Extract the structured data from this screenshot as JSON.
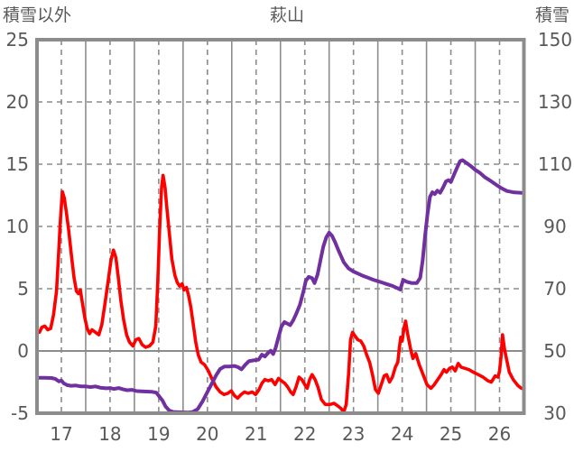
{
  "chart": {
    "title": "萩山",
    "left_axis_title": "積雪以外",
    "right_axis_title": "積雪"
  },
  "chart_data": {
    "type": "line",
    "title": "萩山",
    "x_axis": {
      "labels": [
        "17",
        "18",
        "19",
        "20",
        "21",
        "22",
        "23",
        "24",
        "25",
        "26"
      ],
      "min": 17,
      "max": 27,
      "note": "x in day-of-month units; each labeled day cell spans one unit; solid gridlines at day boundaries, dashed gridlines at day centers"
    },
    "left_axis": {
      "label": "積雪以外",
      "min": -5,
      "max": 25,
      "ticks": [
        25,
        20,
        15,
        10,
        5,
        0,
        -5
      ],
      "zero_line": 0,
      "dashed_gridlines": [
        20,
        15,
        10,
        5
      ]
    },
    "right_axis": {
      "label": "積雪",
      "min": 30,
      "max": 150,
      "ticks": [
        150,
        130,
        110,
        90,
        70,
        50,
        30
      ]
    },
    "colors": {
      "series_non_snow": "#ff0000",
      "series_snow": "#7030a0",
      "grid": "#8c8c8c",
      "text": "#595959"
    },
    "legend": "none",
    "series": [
      {
        "name": "積雪以外",
        "axis": "left",
        "color": "#ff0000",
        "points": [
          [
            17.0,
            1.6
          ],
          [
            17.05,
            1.5
          ],
          [
            17.1,
            1.9
          ],
          [
            17.16,
            2.0
          ],
          [
            17.22,
            1.7
          ],
          [
            17.28,
            1.8
          ],
          [
            17.34,
            2.9
          ],
          [
            17.4,
            4.8
          ],
          [
            17.44,
            7.5
          ],
          [
            17.48,
            10.5
          ],
          [
            17.52,
            12.8
          ],
          [
            17.56,
            12.3
          ],
          [
            17.6,
            11.2
          ],
          [
            17.65,
            9.7
          ],
          [
            17.7,
            7.9
          ],
          [
            17.76,
            5.9
          ],
          [
            17.81,
            4.8
          ],
          [
            17.85,
            4.6
          ],
          [
            17.89,
            4.9
          ],
          [
            17.93,
            3.9
          ],
          [
            17.98,
            2.7
          ],
          [
            18.03,
            1.8
          ],
          [
            18.08,
            1.4
          ],
          [
            18.13,
            1.7
          ],
          [
            18.2,
            1.5
          ],
          [
            18.27,
            1.3
          ],
          [
            18.33,
            2.1
          ],
          [
            18.4,
            3.9
          ],
          [
            18.46,
            5.6
          ],
          [
            18.52,
            7.3
          ],
          [
            18.57,
            8.1
          ],
          [
            18.62,
            7.5
          ],
          [
            18.67,
            5.9
          ],
          [
            18.72,
            4.1
          ],
          [
            18.78,
            2.5
          ],
          [
            18.84,
            1.3
          ],
          [
            18.9,
            0.7
          ],
          [
            18.97,
            0.4
          ],
          [
            19.03,
            0.9
          ],
          [
            19.09,
            1.0
          ],
          [
            19.16,
            0.5
          ],
          [
            19.23,
            0.3
          ],
          [
            19.31,
            0.4
          ],
          [
            19.38,
            0.7
          ],
          [
            19.44,
            2.0
          ],
          [
            19.48,
            5.5
          ],
          [
            19.52,
            10.0
          ],
          [
            19.56,
            13.2
          ],
          [
            19.59,
            14.1
          ],
          [
            19.63,
            13.1
          ],
          [
            19.67,
            11.4
          ],
          [
            19.72,
            9.4
          ],
          [
            19.77,
            7.4
          ],
          [
            19.83,
            6.1
          ],
          [
            19.88,
            5.5
          ],
          [
            19.93,
            5.2
          ],
          [
            19.98,
            5.4
          ],
          [
            20.02,
            4.9
          ],
          [
            20.07,
            5.1
          ],
          [
            20.11,
            4.5
          ],
          [
            20.16,
            3.5
          ],
          [
            20.21,
            2.1
          ],
          [
            20.26,
            0.7
          ],
          [
            20.31,
            -0.3
          ],
          [
            20.37,
            -0.9
          ],
          [
            20.44,
            -1.1
          ],
          [
            20.52,
            -1.6
          ],
          [
            20.6,
            -2.3
          ],
          [
            20.68,
            -2.9
          ],
          [
            20.76,
            -3.3
          ],
          [
            20.84,
            -3.5
          ],
          [
            20.92,
            -3.4
          ],
          [
            20.99,
            -3.2
          ],
          [
            21.06,
            -3.6
          ],
          [
            21.12,
            -3.8
          ],
          [
            21.19,
            -3.5
          ],
          [
            21.26,
            -3.3
          ],
          [
            21.34,
            -3.4
          ],
          [
            21.42,
            -3.3
          ],
          [
            21.49,
            -3.5
          ],
          [
            21.56,
            -3.1
          ],
          [
            21.62,
            -2.6
          ],
          [
            21.68,
            -2.3
          ],
          [
            21.75,
            -2.4
          ],
          [
            21.82,
            -2.3
          ],
          [
            21.89,
            -2.7
          ],
          [
            21.96,
            -2.2
          ],
          [
            22.02,
            -2.4
          ],
          [
            22.09,
            -2.6
          ],
          [
            22.15,
            -2.9
          ],
          [
            22.21,
            -3.3
          ],
          [
            22.26,
            -3.5
          ],
          [
            22.32,
            -2.9
          ],
          [
            22.38,
            -2.1
          ],
          [
            22.44,
            -2.3
          ],
          [
            22.5,
            -2.7
          ],
          [
            22.55,
            -3.0
          ],
          [
            22.6,
            -2.3
          ],
          [
            22.65,
            -1.9
          ],
          [
            22.71,
            -2.3
          ],
          [
            22.77,
            -2.9
          ],
          [
            22.84,
            -3.9
          ],
          [
            22.92,
            -4.3
          ],
          [
            23.02,
            -4.3
          ],
          [
            23.1,
            -4.2
          ],
          [
            23.17,
            -4.4
          ],
          [
            23.24,
            -4.6
          ],
          [
            23.3,
            -4.9
          ],
          [
            23.35,
            -4.3
          ],
          [
            23.4,
            -1.8
          ],
          [
            23.44,
            0.9
          ],
          [
            23.48,
            1.5
          ],
          [
            23.53,
            1.2
          ],
          [
            23.59,
            0.9
          ],
          [
            23.65,
            0.8
          ],
          [
            23.71,
            0.4
          ],
          [
            23.77,
            -0.3
          ],
          [
            23.83,
            -0.9
          ],
          [
            23.89,
            -1.9
          ],
          [
            23.95,
            -3.1
          ],
          [
            24.01,
            -3.4
          ],
          [
            24.07,
            -2.7
          ],
          [
            24.13,
            -2.0
          ],
          [
            24.18,
            -1.9
          ],
          [
            24.24,
            -2.5
          ],
          [
            24.3,
            -2.1
          ],
          [
            24.36,
            -1.3
          ],
          [
            24.41,
            -0.9
          ],
          [
            24.44,
            0.2
          ],
          [
            24.47,
            1.1
          ],
          [
            24.5,
            0.8
          ],
          [
            24.54,
            1.9
          ],
          [
            24.57,
            2.4
          ],
          [
            24.61,
            1.4
          ],
          [
            24.67,
            0.2
          ],
          [
            24.72,
            -0.6
          ],
          [
            24.78,
            -0.2
          ],
          [
            24.85,
            -1.1
          ],
          [
            24.93,
            -1.9
          ],
          [
            25.01,
            -2.7
          ],
          [
            25.09,
            -3.0
          ],
          [
            25.16,
            -2.7
          ],
          [
            25.23,
            -2.3
          ],
          [
            25.3,
            -1.9
          ],
          [
            25.36,
            -1.5
          ],
          [
            25.41,
            -1.7
          ],
          [
            25.47,
            -1.4
          ],
          [
            25.53,
            -1.3
          ],
          [
            25.59,
            -1.6
          ],
          [
            25.65,
            -1.0
          ],
          [
            25.71,
            -1.3
          ],
          [
            25.79,
            -1.4
          ],
          [
            25.87,
            -1.5
          ],
          [
            25.96,
            -1.7
          ],
          [
            26.06,
            -1.9
          ],
          [
            26.16,
            -2.1
          ],
          [
            26.26,
            -2.4
          ],
          [
            26.33,
            -2.5
          ],
          [
            26.41,
            -2.0
          ],
          [
            26.47,
            -2.1
          ],
          [
            26.5,
            -1.6
          ],
          [
            26.53,
            -0.5
          ],
          [
            26.56,
            1.3
          ],
          [
            26.6,
            0.2
          ],
          [
            26.64,
            -0.6
          ],
          [
            26.7,
            -1.7
          ],
          [
            26.78,
            -2.3
          ],
          [
            26.88,
            -2.8
          ],
          [
            26.95,
            -3.0
          ]
        ]
      },
      {
        "name": "積雪",
        "axis": "right",
        "color": "#7030a0",
        "points": [
          [
            17.0,
            41.4
          ],
          [
            17.15,
            41.4
          ],
          [
            17.3,
            41.3
          ],
          [
            17.38,
            41.0
          ],
          [
            17.45,
            40.2
          ],
          [
            17.5,
            40.5
          ],
          [
            17.55,
            39.6
          ],
          [
            17.62,
            39.0
          ],
          [
            17.7,
            38.8
          ],
          [
            17.8,
            38.9
          ],
          [
            17.9,
            38.6
          ],
          [
            18.0,
            38.6
          ],
          [
            18.1,
            38.4
          ],
          [
            18.2,
            38.6
          ],
          [
            18.3,
            38.2
          ],
          [
            18.42,
            38.0
          ],
          [
            18.5,
            38.1
          ],
          [
            18.58,
            37.8
          ],
          [
            18.68,
            38.1
          ],
          [
            18.76,
            37.7
          ],
          [
            18.85,
            37.4
          ],
          [
            18.95,
            37.5
          ],
          [
            19.05,
            37.1
          ],
          [
            19.2,
            37.0
          ],
          [
            19.35,
            36.9
          ],
          [
            19.45,
            36.6
          ],
          [
            19.52,
            35.2
          ],
          [
            19.58,
            34.0
          ],
          [
            19.64,
            32.2
          ],
          [
            19.72,
            30.8
          ],
          [
            19.8,
            30.4
          ],
          [
            19.95,
            30.3
          ],
          [
            20.1,
            30.2
          ],
          [
            20.2,
            30.4
          ],
          [
            20.3,
            31.3
          ],
          [
            20.4,
            33.8
          ],
          [
            20.5,
            36.8
          ],
          [
            20.6,
            39.8
          ],
          [
            20.68,
            42.2
          ],
          [
            20.76,
            44.2
          ],
          [
            20.85,
            45.0
          ],
          [
            20.95,
            45.0
          ],
          [
            21.05,
            45.2
          ],
          [
            21.13,
            44.8
          ],
          [
            21.2,
            44.1
          ],
          [
            21.28,
            45.6
          ],
          [
            21.35,
            46.7
          ],
          [
            21.45,
            47.0
          ],
          [
            21.55,
            47.2
          ],
          [
            21.62,
            48.8
          ],
          [
            21.68,
            48.2
          ],
          [
            21.74,
            49.3
          ],
          [
            21.8,
            50.1
          ],
          [
            21.85,
            49.0
          ],
          [
            21.9,
            51.0
          ],
          [
            21.96,
            54.5
          ],
          [
            22.02,
            57.8
          ],
          [
            22.08,
            59.3
          ],
          [
            22.14,
            58.8
          ],
          [
            22.2,
            58.3
          ],
          [
            22.26,
            59.8
          ],
          [
            22.32,
            61.8
          ],
          [
            22.4,
            64.8
          ],
          [
            22.47,
            69.0
          ],
          [
            22.52,
            72.5
          ],
          [
            22.58,
            73.8
          ],
          [
            22.65,
            73.4
          ],
          [
            22.7,
            71.8
          ],
          [
            22.76,
            74.5
          ],
          [
            22.82,
            79.0
          ],
          [
            22.88,
            83.5
          ],
          [
            22.94,
            86.5
          ],
          [
            23.0,
            88.0
          ],
          [
            23.06,
            87.0
          ],
          [
            23.12,
            85.0
          ],
          [
            23.2,
            82.0
          ],
          [
            23.3,
            78.5
          ],
          [
            23.4,
            76.5
          ],
          [
            23.5,
            75.5
          ],
          [
            23.6,
            74.8
          ],
          [
            23.7,
            74.1
          ],
          [
            23.8,
            73.5
          ],
          [
            23.9,
            72.9
          ],
          [
            24.0,
            72.4
          ],
          [
            24.1,
            71.9
          ],
          [
            24.2,
            71.4
          ],
          [
            24.3,
            70.9
          ],
          [
            24.4,
            70.2
          ],
          [
            24.46,
            69.7
          ],
          [
            24.52,
            72.8
          ],
          [
            24.6,
            72.2
          ],
          [
            24.7,
            71.8
          ],
          [
            24.8,
            71.8
          ],
          [
            24.87,
            73.5
          ],
          [
            24.92,
            79.0
          ],
          [
            24.97,
            87.0
          ],
          [
            25.02,
            94.0
          ],
          [
            25.07,
            99.5
          ],
          [
            25.12,
            101.0
          ],
          [
            25.17,
            100.4
          ],
          [
            25.22,
            101.5
          ],
          [
            25.28,
            100.8
          ],
          [
            25.34,
            102.5
          ],
          [
            25.4,
            104.5
          ],
          [
            25.45,
            104.9
          ],
          [
            25.5,
            104.3
          ],
          [
            25.56,
            106.5
          ],
          [
            25.63,
            109.0
          ],
          [
            25.69,
            111.0
          ],
          [
            25.74,
            111.3
          ],
          [
            25.8,
            110.6
          ],
          [
            25.9,
            109.5
          ],
          [
            26.0,
            108.2
          ],
          [
            26.1,
            107.2
          ],
          [
            26.2,
            105.8
          ],
          [
            26.32,
            104.6
          ],
          [
            26.45,
            103.2
          ],
          [
            26.55,
            102.2
          ],
          [
            26.65,
            101.4
          ],
          [
            26.78,
            101.0
          ],
          [
            26.95,
            100.8
          ]
        ]
      }
    ]
  }
}
